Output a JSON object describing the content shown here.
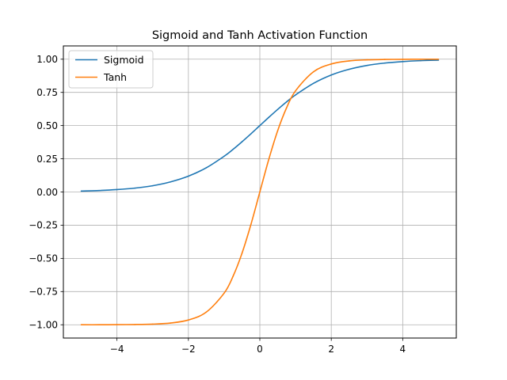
{
  "chart_data": {
    "type": "line",
    "title": "Sigmoid and Tanh Activation Function",
    "xlabel": "",
    "ylabel": "",
    "xlim": [
      -5.5,
      5.5
    ],
    "ylim": [
      -1.1,
      1.1
    ],
    "x_ticks": [
      -4,
      -2,
      0,
      2,
      4
    ],
    "x_tick_labels": [
      "−4",
      "−2",
      "0",
      "2",
      "4"
    ],
    "y_ticks": [
      1.0,
      0.75,
      0.5,
      0.25,
      0.0,
      -0.25,
      -0.5,
      -0.75,
      -1.0
    ],
    "y_tick_labels": [
      "1.00",
      "0.75",
      "0.50",
      "0.25",
      "0.00",
      "−0.25",
      "−0.50",
      "−0.75",
      "−1.00"
    ],
    "grid": true,
    "legend_position": "top-left",
    "x": [
      -5,
      -4.5,
      -4,
      -3.5,
      -3,
      -2.5,
      -2,
      -1.5,
      -1,
      -0.75,
      -0.5,
      -0.25,
      0,
      0.25,
      0.5,
      0.75,
      1,
      1.5,
      2,
      2.5,
      3,
      3.5,
      4,
      4.5,
      5
    ],
    "series": [
      {
        "name": "Sigmoid",
        "color": "#1f77b4",
        "values": [
          0.007,
          0.011,
          0.018,
          0.029,
          0.047,
          0.076,
          0.119,
          0.182,
          0.269,
          0.321,
          0.378,
          0.438,
          0.5,
          0.562,
          0.622,
          0.679,
          0.731,
          0.818,
          0.881,
          0.924,
          0.953,
          0.971,
          0.982,
          0.989,
          0.993
        ]
      },
      {
        "name": "Tanh",
        "color": "#ff7f0e",
        "values": [
          -1.0,
          -1.0,
          -0.999,
          -0.998,
          -0.995,
          -0.987,
          -0.964,
          -0.905,
          -0.762,
          -0.635,
          -0.462,
          -0.245,
          0.0,
          0.245,
          0.462,
          0.635,
          0.762,
          0.905,
          0.964,
          0.987,
          0.995,
          0.998,
          0.999,
          1.0,
          1.0
        ]
      }
    ]
  }
}
